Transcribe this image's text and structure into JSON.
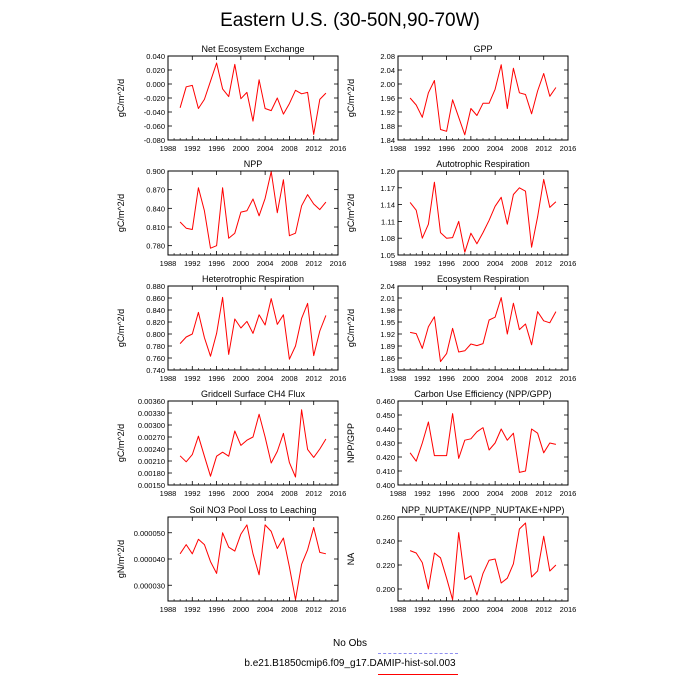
{
  "title": "Eastern U.S. (30-50N,90-70W)",
  "legend": {
    "entries": [
      {
        "label": "No Obs",
        "color": "#8f8fef",
        "style": "dashed"
      },
      {
        "label": "b.e21.B1850cmip6.f09_g17.DAMIP-hist-sol.003",
        "color": "#ff0000",
        "style": "solid"
      }
    ]
  },
  "chart_data": [
    {
      "type": "line",
      "title": "Net Ecosystem Exchange",
      "ylabel": "gC/m^2/d",
      "xlim": [
        1988,
        2016
      ],
      "xticks": [
        1988,
        1992,
        1996,
        2000,
        2004,
        2008,
        2012,
        2016
      ],
      "ylim": [
        -0.08,
        0.04
      ],
      "yticks": [
        -0.08,
        -0.06,
        -0.04,
        -0.02,
        0,
        0.02,
        0.04
      ],
      "ytick_labels": [
        "-0.080",
        "-0.060",
        "-0.040",
        "-0.020",
        "0.000",
        "0.020",
        "0.040"
      ],
      "series": [
        {
          "color": "#ff0000",
          "x": [
            1990,
            1991,
            1992,
            1993,
            1994,
            1995,
            1996,
            1997,
            1998,
            1999,
            2000,
            2001,
            2002,
            2003,
            2004,
            2005,
            2006,
            2007,
            2008,
            2009,
            2010,
            2011,
            2012,
            2013,
            2014
          ],
          "y": [
            -0.034,
            -0.004,
            -0.002,
            -0.035,
            -0.022,
            0.004,
            0.03,
            -0.007,
            -0.018,
            0.028,
            -0.021,
            -0.012,
            -0.053,
            0.006,
            -0.035,
            -0.038,
            -0.02,
            -0.043,
            -0.028,
            -0.009,
            -0.014,
            -0.012,
            -0.072,
            -0.022,
            -0.013
          ]
        }
      ]
    },
    {
      "type": "line",
      "title": "GPP",
      "ylabel": "gC/m^2/d",
      "xlim": [
        1988,
        2016
      ],
      "xticks": [
        1988,
        1992,
        1996,
        2000,
        2004,
        2008,
        2012,
        2016
      ],
      "ylim": [
        1.84,
        2.08
      ],
      "yticks": [
        1.84,
        1.88,
        1.92,
        1.96,
        2.0,
        2.04,
        2.08
      ],
      "ytick_labels": [
        "1.84",
        "1.88",
        "1.92",
        "1.96",
        "2.00",
        "2.04",
        "2.08"
      ],
      "series": [
        {
          "color": "#ff0000",
          "x": [
            1990,
            1991,
            1992,
            1993,
            1994,
            1995,
            1996,
            1997,
            1998,
            1999,
            2000,
            2001,
            2002,
            2003,
            2004,
            2005,
            2006,
            2007,
            2008,
            2009,
            2010,
            2011,
            2012,
            2013,
            2014
          ],
          "y": [
            1.96,
            1.94,
            1.905,
            1.975,
            2.01,
            1.87,
            1.865,
            1.955,
            1.905,
            1.855,
            1.93,
            1.91,
            1.945,
            1.945,
            1.985,
            2.055,
            1.93,
            2.045,
            1.975,
            1.97,
            1.915,
            1.98,
            2.03,
            1.965,
            1.99
          ]
        }
      ]
    },
    {
      "type": "line",
      "title": "NPP",
      "ylabel": "gC/m^2/d",
      "xlim": [
        1988,
        2016
      ],
      "xticks": [
        1988,
        1992,
        1996,
        2000,
        2004,
        2008,
        2012,
        2016
      ],
      "ylim": [
        0.765,
        0.9
      ],
      "yticks": [
        0.78,
        0.81,
        0.84,
        0.87,
        0.9
      ],
      "ytick_labels": [
        "0.780",
        "0.810",
        "0.840",
        "0.870",
        "0.900"
      ],
      "series": [
        {
          "color": "#ff0000",
          "x": [
            1990,
            1991,
            1992,
            1993,
            1994,
            1995,
            1996,
            1997,
            1998,
            1999,
            2000,
            2001,
            2002,
            2003,
            2004,
            2005,
            2006,
            2007,
            2008,
            2009,
            2010,
            2011,
            2012,
            2013,
            2014
          ],
          "y": [
            0.818,
            0.808,
            0.806,
            0.873,
            0.836,
            0.776,
            0.78,
            0.873,
            0.792,
            0.8,
            0.834,
            0.836,
            0.855,
            0.828,
            0.856,
            0.899,
            0.833,
            0.886,
            0.796,
            0.8,
            0.844,
            0.862,
            0.847,
            0.838,
            0.85
          ]
        }
      ]
    },
    {
      "type": "line",
      "title": "Autotrophic Respiration",
      "ylabel": "gC/m^2/d",
      "xlim": [
        1988,
        2016
      ],
      "xticks": [
        1988,
        1992,
        1996,
        2000,
        2004,
        2008,
        2012,
        2016
      ],
      "ylim": [
        1.05,
        1.2
      ],
      "yticks": [
        1.05,
        1.08,
        1.11,
        1.14,
        1.17,
        1.2
      ],
      "ytick_labels": [
        "1.05",
        "1.08",
        "1.11",
        "1.14",
        "1.17",
        "1.20"
      ],
      "series": [
        {
          "color": "#ff0000",
          "x": [
            1990,
            1991,
            1992,
            1993,
            1994,
            1995,
            1996,
            1997,
            1998,
            1999,
            2000,
            2001,
            2002,
            2003,
            2004,
            2005,
            2006,
            2007,
            2008,
            2009,
            2010,
            2011,
            2012,
            2013,
            2014
          ],
          "y": [
            1.144,
            1.13,
            1.08,
            1.105,
            1.18,
            1.09,
            1.08,
            1.081,
            1.11,
            1.055,
            1.089,
            1.07,
            1.09,
            1.112,
            1.137,
            1.153,
            1.105,
            1.158,
            1.17,
            1.164,
            1.064,
            1.118,
            1.185,
            1.135,
            1.145
          ]
        }
      ]
    },
    {
      "type": "line",
      "title": "Heterotrophic Respiration",
      "ylabel": "gC/m^2/d",
      "xlim": [
        1988,
        2016
      ],
      "xticks": [
        1988,
        1992,
        1996,
        2000,
        2004,
        2008,
        2012,
        2016
      ],
      "ylim": [
        0.74,
        0.88
      ],
      "yticks": [
        0.74,
        0.76,
        0.78,
        0.8,
        0.82,
        0.84,
        0.86,
        0.88
      ],
      "ytick_labels": [
        "0.740",
        "0.760",
        "0.780",
        "0.800",
        "0.820",
        "0.840",
        "0.860",
        "0.880"
      ],
      "series": [
        {
          "color": "#ff0000",
          "x": [
            1990,
            1991,
            1992,
            1993,
            1994,
            1995,
            1996,
            1997,
            1998,
            1999,
            2000,
            2001,
            2002,
            2003,
            2004,
            2005,
            2006,
            2007,
            2008,
            2009,
            2010,
            2011,
            2012,
            2013,
            2014
          ],
          "y": [
            0.784,
            0.795,
            0.8,
            0.836,
            0.794,
            0.763,
            0.801,
            0.861,
            0.766,
            0.825,
            0.81,
            0.821,
            0.801,
            0.832,
            0.815,
            0.859,
            0.816,
            0.832,
            0.758,
            0.78,
            0.826,
            0.851,
            0.764,
            0.805,
            0.831
          ]
        }
      ]
    },
    {
      "type": "line",
      "title": "Ecosystem Respiration",
      "ylabel": "gC/m^2/d",
      "xlim": [
        1988,
        2016
      ],
      "xticks": [
        1988,
        1992,
        1996,
        2000,
        2004,
        2008,
        2012,
        2016
      ],
      "ylim": [
        1.83,
        2.04
      ],
      "yticks": [
        1.83,
        1.86,
        1.89,
        1.92,
        1.95,
        1.98,
        2.01,
        2.04
      ],
      "ytick_labels": [
        "1.83",
        "1.86",
        "1.89",
        "1.92",
        "1.95",
        "1.98",
        "2.01",
        "2.04"
      ],
      "series": [
        {
          "color": "#ff0000",
          "x": [
            1990,
            1991,
            1992,
            1993,
            1994,
            1995,
            1996,
            1997,
            1998,
            1999,
            2000,
            2001,
            2002,
            2003,
            2004,
            2005,
            2006,
            2007,
            2008,
            2009,
            2010,
            2011,
            2012,
            2013,
            2014
          ],
          "y": [
            1.924,
            1.921,
            1.884,
            1.938,
            1.963,
            1.851,
            1.871,
            1.934,
            1.875,
            1.878,
            1.895,
            1.891,
            1.896,
            1.955,
            1.962,
            2.011,
            1.92,
            1.997,
            1.931,
            1.945,
            1.893,
            1.976,
            1.953,
            1.948,
            1.976
          ]
        }
      ]
    },
    {
      "type": "line",
      "title": "Gridcell Surface CH4 Flux",
      "ylabel": "gC/m^2/d",
      "xlim": [
        1988,
        2016
      ],
      "xticks": [
        1988,
        1992,
        1996,
        2000,
        2004,
        2008,
        2012,
        2016
      ],
      "ylim": [
        0.0015,
        0.0036
      ],
      "yticks": [
        0.0015,
        0.0018,
        0.0021,
        0.0024,
        0.0027,
        0.003,
        0.0033,
        0.0036
      ],
      "ytick_labels": [
        "0.00150",
        "0.00180",
        "0.00210",
        "0.00240",
        "0.00270",
        "0.00300",
        "0.00330",
        "0.00360"
      ],
      "series": [
        {
          "color": "#ff0000",
          "x": [
            1990,
            1991,
            1992,
            1993,
            1994,
            1995,
            1996,
            1997,
            1998,
            1999,
            2000,
            2001,
            2002,
            2003,
            2004,
            2005,
            2006,
            2007,
            2008,
            2009,
            2010,
            2011,
            2012,
            2013,
            2014
          ],
          "y": [
            0.00223,
            0.00208,
            0.00226,
            0.00272,
            0.00222,
            0.00172,
            0.00222,
            0.00232,
            0.00222,
            0.00285,
            0.00249,
            0.00262,
            0.0027,
            0.00327,
            0.0027,
            0.00205,
            0.00234,
            0.00279,
            0.00206,
            0.0017,
            0.00338,
            0.00239,
            0.00219,
            0.0024,
            0.00265
          ]
        }
      ]
    },
    {
      "type": "line",
      "title": "Carbon Use Efficiency (NPP/GPP)",
      "ylabel": "NPP/GPP",
      "xlim": [
        1988,
        2016
      ],
      "xticks": [
        1988,
        1992,
        1996,
        2000,
        2004,
        2008,
        2012,
        2016
      ],
      "ylim": [
        0.4,
        0.46
      ],
      "yticks": [
        0.4,
        0.41,
        0.42,
        0.43,
        0.44,
        0.45,
        0.46
      ],
      "ytick_labels": [
        "0.400",
        "0.410",
        "0.420",
        "0.430",
        "0.440",
        "0.450",
        "0.460"
      ],
      "series": [
        {
          "color": "#ff0000",
          "x": [
            1990,
            1991,
            1992,
            1993,
            1994,
            1995,
            1996,
            1997,
            1998,
            1999,
            2000,
            2001,
            2002,
            2003,
            2004,
            2005,
            2006,
            2007,
            2008,
            2009,
            2010,
            2011,
            2012,
            2013,
            2014
          ],
          "y": [
            0.423,
            0.417,
            0.43,
            0.445,
            0.421,
            0.421,
            0.421,
            0.451,
            0.419,
            0.432,
            0.433,
            0.438,
            0.441,
            0.425,
            0.43,
            0.44,
            0.432,
            0.437,
            0.409,
            0.41,
            0.44,
            0.437,
            0.423,
            0.43,
            0.429
          ]
        }
      ]
    },
    {
      "type": "line",
      "title": "Soil NO3 Pool Loss to Leaching",
      "ylabel": "gN/m^2/d",
      "xlim": [
        1988,
        2016
      ],
      "xticks": [
        1988,
        1992,
        1996,
        2000,
        2004,
        2008,
        2012,
        2016
      ],
      "ylim": [
        2.4e-05,
        5.6e-05
      ],
      "yticks": [
        3e-05,
        4e-05,
        5e-05
      ],
      "ytick_labels": [
        "0.000030",
        "0.000040",
        "0.000050"
      ],
      "series": [
        {
          "color": "#ff0000",
          "x": [
            1990,
            1991,
            1992,
            1993,
            1994,
            1995,
            1996,
            1997,
            1998,
            1999,
            2000,
            2001,
            2002,
            2003,
            2004,
            2005,
            2006,
            2007,
            2008,
            2009,
            2010,
            2011,
            2012,
            2013,
            2014
          ],
          "y": [
            4.2e-05,
            4.55e-05,
            4.2e-05,
            4.75e-05,
            4.55e-05,
            3.9e-05,
            3.45e-05,
            5e-05,
            4.45e-05,
            4.3e-05,
            4.95e-05,
            5.3e-05,
            4.2e-05,
            3.4e-05,
            5.3e-05,
            5.05e-05,
            4.4e-05,
            4.8e-05,
            3.7e-05,
            2.45e-05,
            3.8e-05,
            4.35e-05,
            5.2e-05,
            4.25e-05,
            4.2e-05
          ]
        }
      ]
    },
    {
      "type": "line",
      "title": "NPP_NUPTAKE/(NPP_NUPTAKE+NPP)",
      "ylabel": "NA",
      "xlim": [
        1988,
        2016
      ],
      "xticks": [
        1988,
        1992,
        1996,
        2000,
        2004,
        2008,
        2012,
        2016
      ],
      "ylim": [
        0.19,
        0.26
      ],
      "yticks": [
        0.2,
        0.22,
        0.24,
        0.26
      ],
      "ytick_labels": [
        "0.200",
        "0.220",
        "0.240",
        "0.260"
      ],
      "series": [
        {
          "color": "#ff0000",
          "x": [
            1990,
            1991,
            1992,
            1993,
            1994,
            1995,
            1996,
            1997,
            1998,
            1999,
            2000,
            2001,
            2002,
            2003,
            2004,
            2005,
            2006,
            2007,
            2008,
            2009,
            2010,
            2011,
            2012,
            2013,
            2014
          ],
          "y": [
            0.232,
            0.23,
            0.222,
            0.2,
            0.23,
            0.226,
            0.209,
            0.191,
            0.247,
            0.208,
            0.211,
            0.195,
            0.213,
            0.224,
            0.225,
            0.205,
            0.209,
            0.221,
            0.25,
            0.255,
            0.21,
            0.215,
            0.244,
            0.215,
            0.22
          ]
        }
      ]
    }
  ]
}
